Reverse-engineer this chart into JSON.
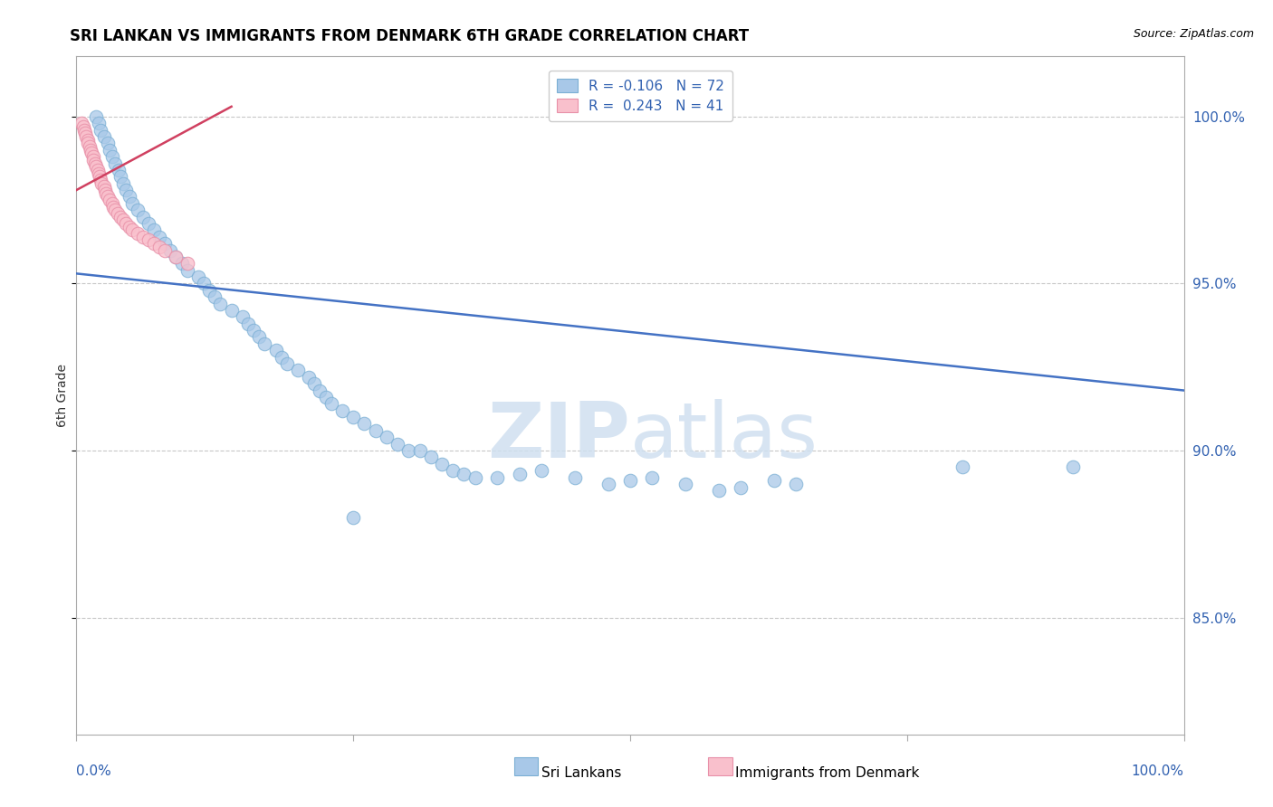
{
  "title": "SRI LANKAN VS IMMIGRANTS FROM DENMARK 6TH GRADE CORRELATION CHART",
  "source": "Source: ZipAtlas.com",
  "ylabel": "6th Grade",
  "ytick_labels": [
    "85.0%",
    "90.0%",
    "95.0%",
    "100.0%"
  ],
  "ytick_values": [
    0.85,
    0.9,
    0.95,
    1.0
  ],
  "xrange": [
    0.0,
    1.0
  ],
  "yrange": [
    0.815,
    1.018
  ],
  "legend_blue_r": "-0.106",
  "legend_blue_n": "72",
  "legend_pink_r": "0.243",
  "legend_pink_n": "41",
  "blue_color": "#a8c8e8",
  "blue_edge_color": "#7bafd4",
  "pink_color": "#f9c0cc",
  "pink_edge_color": "#e890a8",
  "trend_blue_color": "#4472c4",
  "trend_pink_color": "#d04060",
  "watermark_color": "#d0e0f0",
  "blue_scatter_x": [
    0.018,
    0.02,
    0.022,
    0.025,
    0.028,
    0.03,
    0.032,
    0.035,
    0.038,
    0.04,
    0.042,
    0.045,
    0.048,
    0.05,
    0.055,
    0.06,
    0.065,
    0.07,
    0.075,
    0.08,
    0.085,
    0.09,
    0.095,
    0.1,
    0.11,
    0.115,
    0.12,
    0.125,
    0.13,
    0.14,
    0.15,
    0.155,
    0.16,
    0.165,
    0.17,
    0.18,
    0.185,
    0.19,
    0.2,
    0.21,
    0.215,
    0.22,
    0.225,
    0.23,
    0.24,
    0.25,
    0.26,
    0.27,
    0.28,
    0.29,
    0.3,
    0.31,
    0.32,
    0.33,
    0.34,
    0.35,
    0.36,
    0.38,
    0.4,
    0.42,
    0.45,
    0.48,
    0.5,
    0.52,
    0.55,
    0.58,
    0.6,
    0.63,
    0.65,
    0.8,
    0.9,
    0.25
  ],
  "blue_scatter_y": [
    1.0,
    0.998,
    0.996,
    0.994,
    0.992,
    0.99,
    0.988,
    0.986,
    0.984,
    0.982,
    0.98,
    0.978,
    0.976,
    0.974,
    0.972,
    0.97,
    0.968,
    0.966,
    0.964,
    0.962,
    0.96,
    0.958,
    0.956,
    0.954,
    0.952,
    0.95,
    0.948,
    0.946,
    0.944,
    0.942,
    0.94,
    0.938,
    0.936,
    0.934,
    0.932,
    0.93,
    0.928,
    0.926,
    0.924,
    0.922,
    0.92,
    0.918,
    0.916,
    0.914,
    0.912,
    0.91,
    0.908,
    0.906,
    0.904,
    0.902,
    0.9,
    0.9,
    0.898,
    0.896,
    0.894,
    0.893,
    0.892,
    0.892,
    0.893,
    0.894,
    0.892,
    0.89,
    0.891,
    0.892,
    0.89,
    0.888,
    0.889,
    0.891,
    0.89,
    0.895,
    0.895,
    0.88
  ],
  "pink_scatter_x": [
    0.005,
    0.006,
    0.007,
    0.008,
    0.009,
    0.01,
    0.01,
    0.012,
    0.013,
    0.014,
    0.015,
    0.015,
    0.017,
    0.018,
    0.019,
    0.02,
    0.021,
    0.022,
    0.023,
    0.025,
    0.026,
    0.027,
    0.028,
    0.03,
    0.032,
    0.033,
    0.035,
    0.037,
    0.04,
    0.042,
    0.045,
    0.048,
    0.05,
    0.055,
    0.06,
    0.065,
    0.07,
    0.075,
    0.08,
    0.09,
    0.1
  ],
  "pink_scatter_y": [
    0.998,
    0.997,
    0.996,
    0.995,
    0.994,
    0.993,
    0.992,
    0.991,
    0.99,
    0.989,
    0.988,
    0.987,
    0.986,
    0.985,
    0.984,
    0.983,
    0.982,
    0.981,
    0.98,
    0.979,
    0.978,
    0.977,
    0.976,
    0.975,
    0.974,
    0.973,
    0.972,
    0.971,
    0.97,
    0.969,
    0.968,
    0.967,
    0.966,
    0.965,
    0.964,
    0.963,
    0.962,
    0.961,
    0.96,
    0.958,
    0.956
  ],
  "blue_trend_x0": 0.0,
  "blue_trend_x1": 1.0,
  "blue_trend_y0": 0.953,
  "blue_trend_y1": 0.918,
  "pink_trend_x0": 0.0,
  "pink_trend_x1": 0.14,
  "pink_trend_y0": 0.978,
  "pink_trend_y1": 1.003
}
